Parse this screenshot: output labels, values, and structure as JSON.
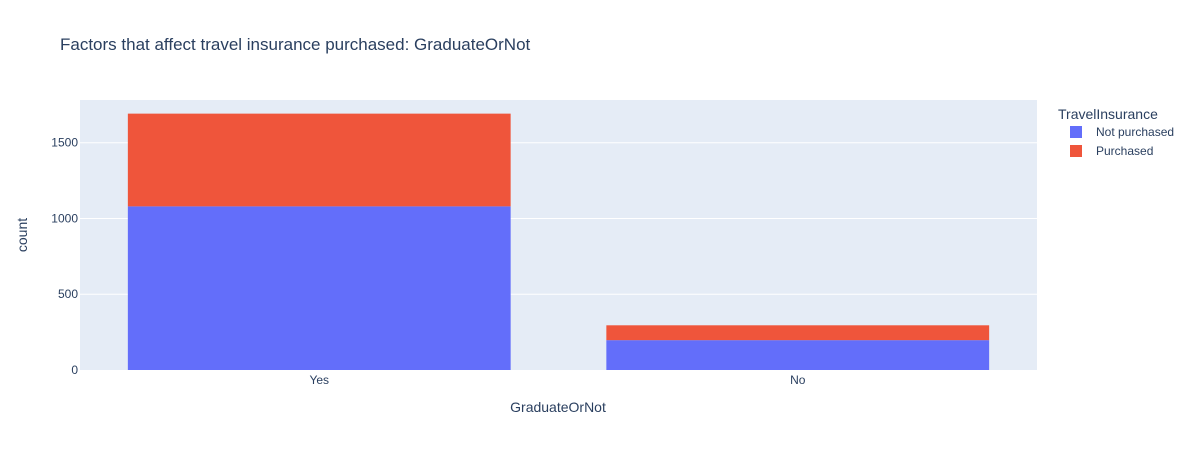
{
  "chart_data": {
    "type": "bar",
    "barmode": "stack",
    "title": "Factors that affect travel insurance purchased: GraduateOrNot",
    "xlabel": "GraduateOrNot",
    "ylabel": "count",
    "categories": [
      "Yes",
      "No"
    ],
    "series": [
      {
        "name": "Not purchased",
        "values": [
          1080,
          197
        ],
        "color": "#636efa"
      },
      {
        "name": "Purchased",
        "values": [
          612,
          98
        ],
        "color": "#ef553b"
      }
    ],
    "yticks": [
      0,
      500,
      1000,
      1500
    ],
    "ylim": [
      0,
      1782
    ],
    "grid": true,
    "legend": {
      "title": "TravelInsurance",
      "placement": "top-right"
    },
    "colors": {
      "plot_bg": "#e5ecf6",
      "grid": "#ffffff",
      "text": "#2a3f5f"
    }
  }
}
